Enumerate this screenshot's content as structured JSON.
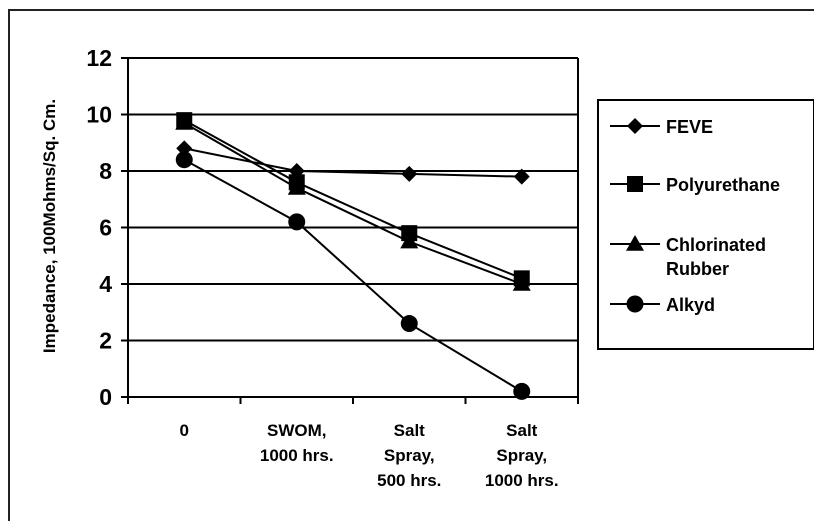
{
  "chart_data": {
    "type": "line",
    "title": "",
    "xlabel": "",
    "ylabel": "Impedance, 100Mohms/Sq. Cm.",
    "categories": [
      [
        "0"
      ],
      [
        "SWOM,",
        "1000 hrs."
      ],
      [
        "Salt",
        "Spray,",
        "500 hrs."
      ],
      [
        "Salt",
        "Spray,",
        "1000 hrs."
      ]
    ],
    "ylim": [
      0,
      12
    ],
    "yticks": [
      0,
      2,
      4,
      6,
      8,
      10,
      12
    ],
    "grid": "horizontal",
    "legend_position": "right",
    "series": [
      {
        "name": "FEVE",
        "marker": "diamond",
        "values": [
          8.8,
          8.0,
          7.9,
          7.8
        ]
      },
      {
        "name": "Polyurethane",
        "marker": "square",
        "values": [
          9.8,
          7.6,
          5.8,
          4.2
        ]
      },
      {
        "name": "Chlorinated Rubber",
        "legend_lines": [
          "Chlorinated",
          "Rubber"
        ],
        "marker": "triangle",
        "values": [
          9.7,
          7.4,
          5.5,
          4.0
        ]
      },
      {
        "name": "Alkyd",
        "marker": "circle",
        "values": [
          8.4,
          6.2,
          2.6,
          0.2
        ]
      }
    ],
    "colors": {
      "line": "#000000",
      "grid": "#000000",
      "background": "#ffffff"
    }
  }
}
